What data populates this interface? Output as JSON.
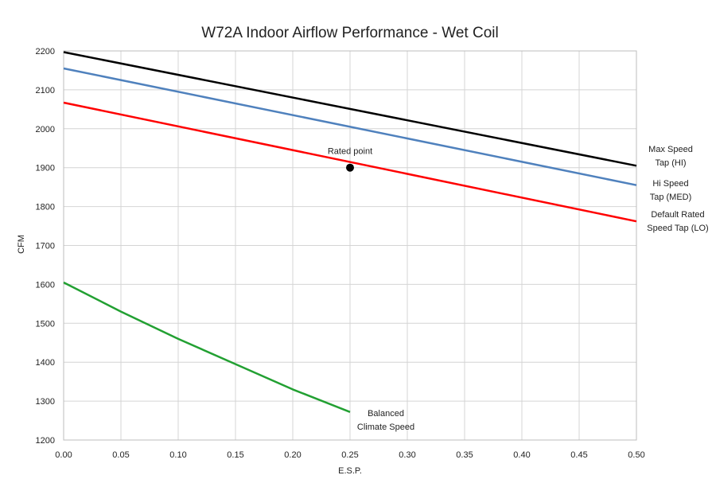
{
  "chart_data": {
    "type": "line",
    "title": "W72A   Indoor Airflow Performance - Wet Coil",
    "xlabel": "E.S.P.",
    "ylabel": "CFM",
    "xlim": [
      0,
      0.5
    ],
    "ylim": [
      1200,
      2200
    ],
    "grid": true,
    "x_ticks": [
      "0.00",
      "0.05",
      "0.10",
      "0.15",
      "0.20",
      "0.25",
      "0.30",
      "0.35",
      "0.40",
      "0.45",
      "0.50"
    ],
    "y_ticks": [
      "1200",
      "1300",
      "1400",
      "1500",
      "1600",
      "1700",
      "1800",
      "1900",
      "2000",
      "2100",
      "2200"
    ],
    "series": [
      {
        "name": "Max Speed Tap (HI)",
        "label_lines": [
          "Max Speed",
          "Tap (HI)"
        ],
        "color": "#000000",
        "x": [
          0,
          0.5
        ],
        "y": [
          2197,
          1905
        ]
      },
      {
        "name": "Hi Speed Tap (MED)",
        "label_lines": [
          "Hi Speed",
          "Tap (MED)"
        ],
        "color": "#4f81bd",
        "x": [
          0,
          0.5
        ],
        "y": [
          2155,
          1855
        ]
      },
      {
        "name": "Default Rated Speed Tap (LO)",
        "label_lines": [
          "Default Rated",
          "Speed Tap (LO)"
        ],
        "color": "#ff0000",
        "x": [
          0,
          0.5
        ],
        "y": [
          2067,
          1762
        ]
      },
      {
        "name": "Balanced Climate Speed",
        "label_lines": [
          "Balanced",
          "Climate Speed"
        ],
        "color": "#22a032",
        "x": [
          0,
          0.05,
          0.1,
          0.15,
          0.2,
          0.25
        ],
        "y": [
          1605,
          1530,
          1460,
          1395,
          1330,
          1272
        ]
      }
    ],
    "annotations": [
      {
        "text": "Rated point",
        "x": 0.25,
        "y": 1900
      }
    ]
  }
}
